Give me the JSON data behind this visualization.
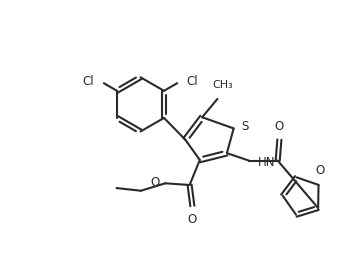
{
  "line_color": "#2a2a2a",
  "bg_color": "#ffffff",
  "lw": 1.5,
  "fs": 8.5,
  "figsize": [
    3.42,
    2.67
  ],
  "dpi": 100,
  "xlim": [
    0,
    10
  ],
  "ylim": [
    0,
    7.8
  ]
}
